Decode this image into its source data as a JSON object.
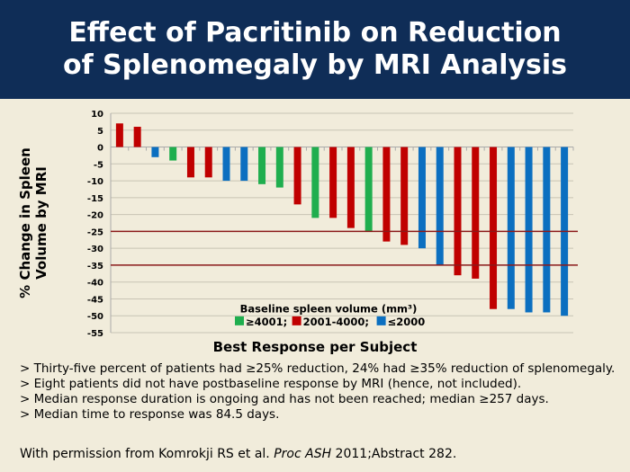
{
  "title": {
    "line1": "Effect of Pacritinib on Reduction",
    "line2": "of Splenomegaly by MRI Analysis"
  },
  "chart_data": {
    "type": "bar",
    "ylabel_line1": "% Change in Spleen",
    "ylabel_line2": "Volume by MRI",
    "xlabel": "Best Response per Subject",
    "ylim": [
      -55,
      10
    ],
    "yticks": [
      10,
      5,
      0,
      -5,
      -10,
      -15,
      -20,
      -25,
      -30,
      -35,
      -40,
      -45,
      -50,
      -55
    ],
    "grid": true,
    "reference_lines": [
      -25,
      -35
    ],
    "legend": {
      "title": "Baseline spleen volume (mm³)",
      "placement": "bottom-center",
      "entries": [
        {
          "key": "g",
          "label": "≥4001;",
          "color": "#1fae4e"
        },
        {
          "key": "r",
          "label": "2001-4000;",
          "color": "#c00000"
        },
        {
          "key": "b",
          "label": "≤2000",
          "color": "#0b6fc0"
        }
      ]
    },
    "values": [
      7,
      6,
      -3,
      -4,
      -9,
      -9,
      -10,
      -10,
      -11,
      -12,
      -17,
      -21,
      -21,
      -24,
      -25,
      -28,
      -29,
      -30,
      -35,
      -38,
      -39,
      -48,
      -48,
      -49,
      -49,
      -50
    ],
    "groups": [
      "r",
      "r",
      "b",
      "g",
      "r",
      "r",
      "b",
      "b",
      "g",
      "g",
      "r",
      "g",
      "r",
      "r",
      "g",
      "r",
      "r",
      "b",
      "b",
      "r",
      "r",
      "r",
      "b",
      "b",
      "b",
      "b"
    ]
  },
  "bullets": [
    "> Thirty-five percent of patients had ≥25% reduction, 24% had ≥35% reduction of splenomegaly.",
    "> Eight patients did not have postbaseline response by MRI (hence, not included).",
    "> Median response duration is ongoing and has not been reached; median ≥257 days.",
    "> Median time to response was 84.5 days."
  ],
  "footer": {
    "prefix": "With permission from Komrokji RS et al. ",
    "journal": "Proc ASH",
    "suffix": " 2011;Abstract 282."
  }
}
